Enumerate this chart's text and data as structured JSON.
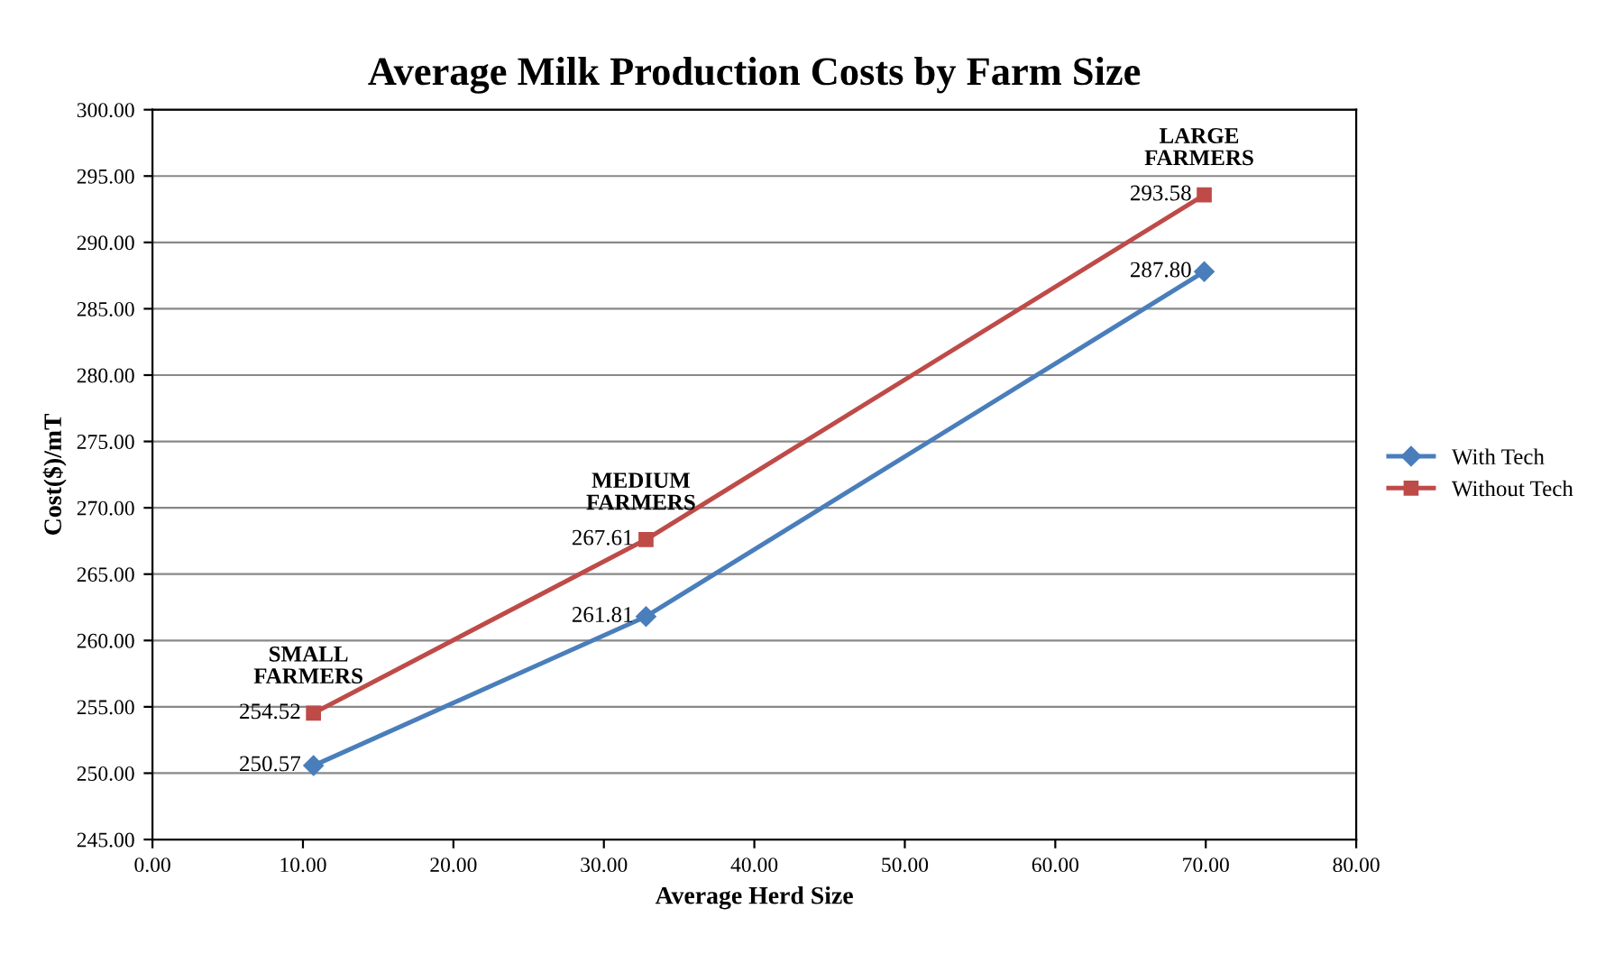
{
  "chart_data": {
    "type": "line",
    "title": "Average Milk Production Costs by Farm Size",
    "xlabel": "Average Herd Size",
    "ylabel": "Cost($)/mT",
    "x": [
      10.7,
      32.8,
      69.9
    ],
    "series": [
      {
        "name": "With Tech",
        "color": "#4a7ebb",
        "marker": "diamond",
        "values": [
          250.57,
          261.81,
          287.8
        ],
        "value_labels": [
          "250.57",
          "261.81",
          "287.80"
        ]
      },
      {
        "name": "Without Tech",
        "color": "#be4b48",
        "marker": "square",
        "values": [
          254.52,
          267.61,
          293.58
        ],
        "value_labels": [
          "254.52",
          "267.61",
          "293.58"
        ]
      }
    ],
    "annotations": [
      {
        "text": "SMALL\nFARMERS",
        "x": 10.7,
        "y": 254.52
      },
      {
        "text": "MEDIUM\nFARMERS",
        "x": 32.8,
        "y": 267.61
      },
      {
        "text": "LARGE\nFARMERS",
        "x": 69.9,
        "y": 293.58
      }
    ],
    "xlim": [
      0,
      80
    ],
    "xticks": [
      {
        "value": 0,
        "label": "0.00"
      },
      {
        "value": 10,
        "label": "10.00"
      },
      {
        "value": 20,
        "label": "20.00"
      },
      {
        "value": 30,
        "label": "30.00"
      },
      {
        "value": 40,
        "label": "40.00"
      },
      {
        "value": 50,
        "label": "50.00"
      },
      {
        "value": 60,
        "label": "60.00"
      },
      {
        "value": 70,
        "label": "70.00"
      },
      {
        "value": 80,
        "label": "80.00"
      }
    ],
    "ylim": [
      245,
      300
    ],
    "yticks": [
      {
        "value": 245,
        "label": "245.00"
      },
      {
        "value": 250,
        "label": "250.00"
      },
      {
        "value": 255,
        "label": "255.00"
      },
      {
        "value": 260,
        "label": "260.00"
      },
      {
        "value": 265,
        "label": "265.00"
      },
      {
        "value": 270,
        "label": "270.00"
      },
      {
        "value": 275,
        "label": "275.00"
      },
      {
        "value": 280,
        "label": "280.00"
      },
      {
        "value": 285,
        "label": "285.00"
      },
      {
        "value": 290,
        "label": "290.00"
      },
      {
        "value": 295,
        "label": "295.00"
      },
      {
        "value": 300,
        "label": "300.00"
      }
    ],
    "grid": "y",
    "legend": "right"
  }
}
